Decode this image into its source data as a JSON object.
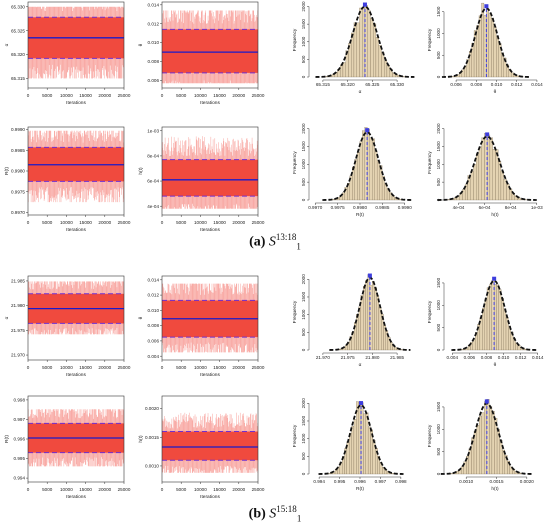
{
  "captions": [
    {
      "tag": "(a)",
      "symbol": "S",
      "sub": "1",
      "sup": "13:18"
    },
    {
      "tag": "(b)",
      "symbol": "S",
      "sub": "1",
      "sup": "15:18"
    }
  ],
  "colors": {
    "trace_fill": "#f04a3e",
    "trace_mean": "#1a1acc",
    "trace_band": "#7030d0",
    "hist_bar": "#e4d3b2",
    "hist_edge": "#6b5a40",
    "density": "#111111",
    "hist_mean": "#3d3ddd"
  },
  "chart_data": [
    {
      "type": "trace",
      "panel": "a",
      "xlabel": "Iterations",
      "ylabel": "α",
      "xticks": [
        "0",
        "5000",
        "10000",
        "15000",
        "20000",
        "25000"
      ],
      "xlim": [
        0,
        25000
      ],
      "yticks": [
        "65.315",
        "65.320",
        "65.325",
        "65.330"
      ],
      "ylim": [
        65.313,
        65.331
      ],
      "mean": 65.3235,
      "band": [
        65.3192,
        65.3278
      ],
      "spread": [
        65.315,
        65.33
      ]
    },
    {
      "type": "trace",
      "panel": "a",
      "xlabel": "Iterations",
      "ylabel": "θ",
      "xticks": [
        "0",
        "5000",
        "10000",
        "15000",
        "20000",
        "25000"
      ],
      "xlim": [
        0,
        25000
      ],
      "yticks": [
        "0.006",
        "0.008",
        "0.010",
        "0.012",
        "0.014"
      ],
      "ylim": [
        0.0052,
        0.0143
      ],
      "mean": 0.009,
      "band": [
        0.0068,
        0.0114
      ],
      "spread": [
        0.0057,
        0.0134
      ]
    },
    {
      "type": "histogram",
      "panel": "a",
      "xlabel": "α",
      "ylabel": "Frequency",
      "xticks": [
        "65.315",
        "65.320",
        "65.325",
        "65.330"
      ],
      "xlim": [
        65.313,
        65.332
      ],
      "yticks": [
        "0",
        "500",
        "1000",
        "1500",
        "2000"
      ],
      "ylim": [
        0,
        2100
      ],
      "mean": 65.3235,
      "sd": 0.0025,
      "peak": 2000
    },
    {
      "type": "histogram",
      "panel": "a",
      "xlabel": "θ",
      "ylabel": "Frequency",
      "xticks": [
        "0.006",
        "0.008",
        "0.010",
        "0.012",
        "0.014"
      ],
      "xlim": [
        0.0052,
        0.0145
      ],
      "yticks": [
        "0",
        "500",
        "1000",
        "1500"
      ],
      "ylim": [
        0,
        1700
      ],
      "mean": 0.009,
      "sd": 0.0011,
      "peak": 1580
    },
    {
      "type": "trace",
      "panel": "a",
      "xlabel": "Iterations",
      "ylabel": "R(t)",
      "xticks": [
        "0",
        "5000",
        "10000",
        "15000",
        "20000",
        "25000"
      ],
      "xlim": [
        0,
        25000
      ],
      "yticks": [
        "0.9970",
        "0.9975",
        "0.9980",
        "0.9985",
        "0.9990"
      ],
      "ylim": [
        0.99694,
        0.99906
      ],
      "mean": 0.99815,
      "band": [
        0.99775,
        0.99857
      ],
      "spread": [
        0.99725,
        0.99897
      ]
    },
    {
      "type": "trace",
      "panel": "a",
      "xlabel": "Iterations",
      "ylabel": "h(t)",
      "xticks": [
        "0",
        "5000",
        "10000",
        "15000",
        "20000",
        "25000"
      ],
      "xlim": [
        0,
        25000
      ],
      "yticks": [
        "4e-04",
        "6e-04",
        "8e-04",
        "1e-03"
      ],
      "ylim": [
        0.00033,
        0.00103
      ],
      "mean": 0.00061,
      "band": [
        0.00048,
        0.00077
      ],
      "spread": [
        0.00038,
        0.00099
      ]
    },
    {
      "type": "histogram",
      "panel": "a",
      "xlabel": "R(t)",
      "ylabel": "Frequency",
      "xticks": [
        "0.9970",
        "0.9975",
        "0.9980",
        "0.9985",
        "0.9990"
      ],
      "xlim": [
        0.99695,
        0.99905
      ],
      "yticks": [
        "0",
        "500",
        "1000",
        "1500",
        "2000"
      ],
      "ylim": [
        0,
        2100
      ],
      "mean": 0.99816,
      "sd": 0.00025,
      "peak": 1900
    },
    {
      "type": "histogram",
      "panel": "a",
      "xlabel": "h(t)",
      "ylabel": "Frequency",
      "xticks": [
        "4e-04",
        "6e-04",
        "8e-04",
        "1e-03"
      ],
      "xlim": [
        0.00032,
        0.00104
      ],
      "yticks": [
        "0",
        "500",
        "1000",
        "1500",
        "2000"
      ],
      "ylim": [
        0,
        2100
      ],
      "mean": 0.00062,
      "sd": 9.5e-05,
      "peak": 1780
    },
    {
      "type": "trace",
      "panel": "b",
      "xlabel": "Iterations",
      "ylabel": "α",
      "xticks": [
        "0",
        "5000",
        "10000",
        "15000",
        "20000",
        "25000"
      ],
      "xlim": [
        0,
        25000
      ],
      "yticks": [
        "21.970",
        "21.975",
        "21.980",
        "21.985"
      ],
      "ylim": [
        21.969,
        21.986
      ],
      "mean": 21.9794,
      "band": [
        21.9764,
        21.9824
      ],
      "spread": [
        21.9742,
        21.9849
      ]
    },
    {
      "type": "trace",
      "panel": "b",
      "xlabel": "Iterations",
      "ylabel": "θ",
      "xticks": [
        "0",
        "5000",
        "10000",
        "15000",
        "20000",
        "25000"
      ],
      "xlim": [
        0,
        25000
      ],
      "yticks": [
        "0.004",
        "0.006",
        "0.008",
        "0.010",
        "0.012",
        "0.014"
      ],
      "ylim": [
        0.0035,
        0.0145
      ],
      "mean": 0.0089,
      "band": [
        0.0065,
        0.0113
      ],
      "spread": [
        0.0045,
        0.0135
      ]
    },
    {
      "type": "histogram",
      "panel": "b",
      "xlabel": "α",
      "ylabel": "Frequency",
      "xticks": [
        "21.970",
        "21.975",
        "21.980",
        "21.985"
      ],
      "xlim": [
        21.968,
        21.987
      ],
      "yticks": [
        "0",
        "500",
        "1000",
        "1500",
        "2000"
      ],
      "ylim": [
        0,
        2150
      ],
      "mean": 21.9795,
      "sd": 0.00205,
      "peak": 2050
    },
    {
      "type": "histogram",
      "panel": "b",
      "xlabel": "θ",
      "ylabel": "Frequency",
      "xticks": [
        "0.004",
        "0.006",
        "0.008",
        "0.010",
        "0.012",
        "0.014"
      ],
      "xlim": [
        0.0035,
        0.0145
      ],
      "yticks": [
        "0",
        "500",
        "1000",
        "1500"
      ],
      "ylim": [
        0,
        1700
      ],
      "mean": 0.0089,
      "sd": 0.00125,
      "peak": 1550
    },
    {
      "type": "trace",
      "panel": "b",
      "xlabel": "Iterations",
      "ylabel": "R(t)",
      "xticks": [
        "0",
        "5000",
        "10000",
        "15000",
        "20000",
        "25000"
      ],
      "xlim": [
        0,
        25000
      ],
      "yticks": [
        "0.994",
        "0.995",
        "0.996",
        "0.997",
        "0.998"
      ],
      "ylim": [
        0.9938,
        0.9982
      ],
      "mean": 0.99605,
      "band": [
        0.9953,
        0.9968
      ],
      "spread": [
        0.9946,
        0.99752
      ]
    },
    {
      "type": "trace",
      "panel": "b",
      "xlabel": "Iterations",
      "ylabel": "h(t)",
      "xticks": [
        "0",
        "5000",
        "10000",
        "15000",
        "20000",
        "25000"
      ],
      "xlim": [
        0,
        25000
      ],
      "yticks": [
        "0.0010",
        "0.0015",
        "0.0020"
      ],
      "ylim": [
        0.00072,
        0.00222
      ],
      "mean": 0.00133,
      "band": [
        0.0011,
        0.0016
      ],
      "spread": [
        0.00088,
        0.002
      ]
    },
    {
      "type": "histogram",
      "panel": "b",
      "xlabel": "R(t)",
      "ylabel": "Frequency",
      "xticks": [
        "0.994",
        "0.995",
        "0.996",
        "0.997",
        "0.998"
      ],
      "xlim": [
        0.9937,
        0.9983
      ],
      "yticks": [
        "0",
        "500",
        "1000",
        "1500",
        "2000"
      ],
      "ylim": [
        0,
        2150
      ],
      "mean": 0.99605,
      "sd": 0.00052,
      "peak": 1950
    },
    {
      "type": "histogram",
      "panel": "b",
      "xlabel": "h(t)",
      "ylabel": "Frequency",
      "xticks": [
        "0.0010",
        "0.0015",
        "0.0020"
      ],
      "xlim": [
        0.0007,
        0.00225
      ],
      "yticks": [
        "0",
        "500",
        "1000",
        "1500"
      ],
      "ylim": [
        0,
        1700
      ],
      "mean": 0.00134,
      "sd": 0.00019,
      "peak": 1580
    }
  ]
}
